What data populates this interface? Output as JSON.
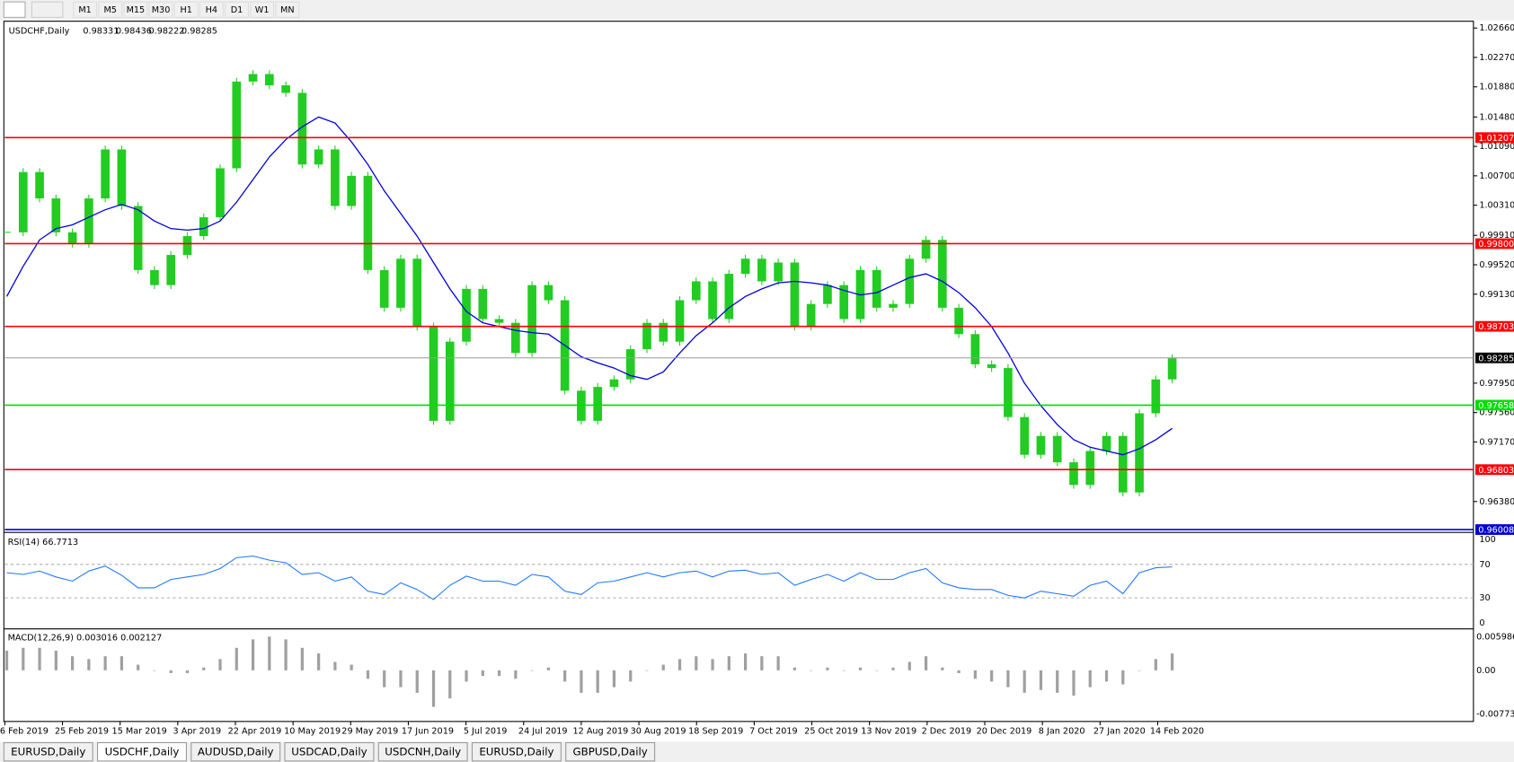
{
  "toolbar": {
    "timeframes": [
      "M1",
      "M5",
      "M15",
      "M30",
      "H1",
      "H4",
      "D1",
      "W1",
      "MN"
    ]
  },
  "chart_data": [
    {
      "type": "candlestick",
      "title": "USDCHF,Daily",
      "ohlc_labels": [
        "0.98331",
        "0.98436",
        "0.98222",
        "0.98285"
      ],
      "ylim": [
        0.9597,
        1.0275
      ],
      "yticks": [
        {
          "value": 1.0266,
          "label": "1.02660"
        },
        {
          "value": 1.0227,
          "label": "1.02270"
        },
        {
          "value": 1.0188,
          "label": "1.01880"
        },
        {
          "value": 1.0148,
          "label": "1.01480"
        },
        {
          "value": 1.0109,
          "label": "1.01090"
        },
        {
          "value": 1.007,
          "label": "1.00700"
        },
        {
          "value": 1.0031,
          "label": "1.00310"
        },
        {
          "value": 0.9991,
          "label": "0.99910"
        },
        {
          "value": 0.9952,
          "label": "0.99520"
        },
        {
          "value": 0.9913,
          "label": "0.99130"
        },
        {
          "value": 0.9795,
          "label": "0.97950"
        },
        {
          "value": 0.9756,
          "label": "0.97560"
        },
        {
          "value": 0.9717,
          "label": "0.97170"
        },
        {
          "value": 0.9638,
          "label": "0.96380"
        }
      ],
      "levels": [
        {
          "value": 1.01207,
          "label": "1.01207",
          "color": "#ff0000"
        },
        {
          "value": 0.998,
          "label": "0.99800",
          "color": "#ff0000"
        },
        {
          "value": 0.98703,
          "label": "0.98703",
          "color": "#ff0000"
        },
        {
          "value": 0.98285,
          "label": "0.98285",
          "color": "#000000"
        },
        {
          "value": 0.97658,
          "label": "0.97658",
          "color": "#00dd00"
        },
        {
          "value": 0.96803,
          "label": "0.96803",
          "color": "#ff0000"
        },
        {
          "value": 0.96008,
          "label": "0.96008",
          "color": "#0000cc"
        }
      ],
      "candle_color": "#22cc22",
      "closes": [
        0.9995,
        1.0075,
        1.004,
        0.9995,
        0.998,
        1.004,
        1.0105,
        1.003,
        0.9945,
        0.9925,
        0.9965,
        0.999,
        1.0015,
        1.008,
        1.0195,
        1.0205,
        1.019,
        1.018,
        1.0085,
        1.0105,
        1.003,
        1.007,
        0.9945,
        0.9895,
        0.996,
        0.987,
        0.9745,
        0.985,
        0.992,
        0.988,
        0.9875,
        0.9835,
        0.9925,
        0.9905,
        0.9785,
        0.9745,
        0.979,
        0.98,
        0.984,
        0.9875,
        0.985,
        0.9905,
        0.993,
        0.988,
        0.994,
        0.996,
        0.993,
        0.9955,
        0.987,
        0.99,
        0.9925,
        0.988,
        0.9945,
        0.9895,
        0.99,
        0.996,
        0.9985,
        0.9895,
        0.986,
        0.982,
        0.9815,
        0.975,
        0.97,
        0.9725,
        0.969,
        0.966,
        0.9705,
        0.9725,
        0.965,
        0.9755,
        0.98,
        0.9828
      ],
      "moving_average": {
        "color": "#0000dd",
        "values": [
          0.991,
          0.995,
          0.9985,
          1.0,
          1.0005,
          1.0015,
          1.0025,
          1.0032,
          1.0025,
          1.001,
          1.0,
          0.9998,
          1.0,
          1.001,
          1.0035,
          1.0065,
          1.0095,
          1.0118,
          1.0135,
          1.0148,
          1.014,
          1.0115,
          1.0085,
          1.005,
          1.002,
          0.999,
          0.9955,
          0.992,
          0.989,
          0.9875,
          0.987,
          0.9865,
          0.9862,
          0.986,
          0.9845,
          0.983,
          0.9822,
          0.9815,
          0.9805,
          0.98,
          0.981,
          0.9835,
          0.9858,
          0.9875,
          0.9895,
          0.991,
          0.992,
          0.9928,
          0.993,
          0.9928,
          0.9925,
          0.9918,
          0.9912,
          0.9915,
          0.9925,
          0.9935,
          0.994,
          0.993,
          0.9915,
          0.9895,
          0.987,
          0.9835,
          0.9795,
          0.9765,
          0.974,
          0.972,
          0.971,
          0.9705,
          0.97,
          0.9708,
          0.972,
          0.9735
        ]
      },
      "x_labels": [
        "6 Feb 2019",
        "25 Feb 2019",
        "15 Mar 2019",
        "3 Apr 2019",
        "22 Apr 2019",
        "10 May 2019",
        "29 May 2019",
        "17 Jun 2019",
        "5 Jul 2019",
        "24 Jul 2019",
        "12 Aug 2019",
        "30 Aug 2019",
        "18 Sep 2019",
        "7 Oct 2019",
        "25 Oct 2019",
        "13 Nov 2019",
        "2 Dec 2019",
        "20 Dec 2019",
        "8 Jan 2020",
        "27 Jan 2020",
        "14 Feb 2020"
      ]
    },
    {
      "type": "line",
      "title": "RSI(14) 66.7713",
      "color": "#1e78ff",
      "ylim": [
        -7,
        107
      ],
      "yticks": [
        100,
        70,
        30,
        0
      ],
      "values": [
        60,
        58,
        62,
        55,
        50,
        62,
        68,
        57,
        42,
        42,
        52,
        55,
        58,
        65,
        78,
        80,
        75,
        72,
        58,
        60,
        50,
        55,
        38,
        34,
        48,
        40,
        28,
        45,
        56,
        50,
        50,
        45,
        58,
        55,
        38,
        34,
        48,
        50,
        55,
        60,
        55,
        60,
        62,
        55,
        62,
        63,
        58,
        60,
        45,
        52,
        58,
        50,
        60,
        52,
        52,
        60,
        65,
        48,
        42,
        40,
        40,
        33,
        30,
        38,
        35,
        32,
        45,
        50,
        35,
        60,
        66,
        67
      ]
    },
    {
      "type": "histogram",
      "title": "MACD(12,26,9) 0.003016 0.002127",
      "color": "#a0a0a0",
      "ylim": [
        -0.0091,
        0.0072
      ],
      "yticks": [
        {
          "value": 0.005986,
          "label": "0.005986"
        },
        {
          "value": 0,
          "label": "0.00"
        },
        {
          "value": -0.007737,
          "label": "-0.007737"
        }
      ],
      "values": [
        0.0035,
        0.004,
        0.004,
        0.0035,
        0.0025,
        0.002,
        0.0025,
        0.0025,
        0.001,
        0,
        -0.0005,
        -0.0005,
        0.0005,
        0.002,
        0.004,
        0.0055,
        0.006,
        0.0055,
        0.004,
        0.003,
        0.0015,
        0.001,
        -0.0015,
        -0.003,
        -0.003,
        -0.004,
        -0.0065,
        -0.005,
        -0.002,
        -0.001,
        -0.001,
        -0.0015,
        0,
        0.0005,
        -0.002,
        -0.004,
        -0.004,
        -0.003,
        -0.002,
        0,
        0.001,
        0.002,
        0.0025,
        0.002,
        0.0025,
        0.003,
        0.0025,
        0.0025,
        0.0005,
        0,
        0.0005,
        0,
        0.0005,
        0,
        0.0005,
        0.0015,
        0.0025,
        0.0005,
        -0.0005,
        -0.0015,
        -0.002,
        -0.003,
        -0.004,
        -0.0035,
        -0.004,
        -0.0045,
        -0.003,
        -0.002,
        -0.0025,
        0,
        0.002,
        0.003
      ]
    }
  ],
  "tabs": [
    "EURUSD,Daily",
    "USDCHF,Daily",
    "AUDUSD,Daily",
    "USDCAD,Daily",
    "USDCNH,Daily",
    "EURUSD,Daily",
    "GBPUSD,Daily"
  ]
}
